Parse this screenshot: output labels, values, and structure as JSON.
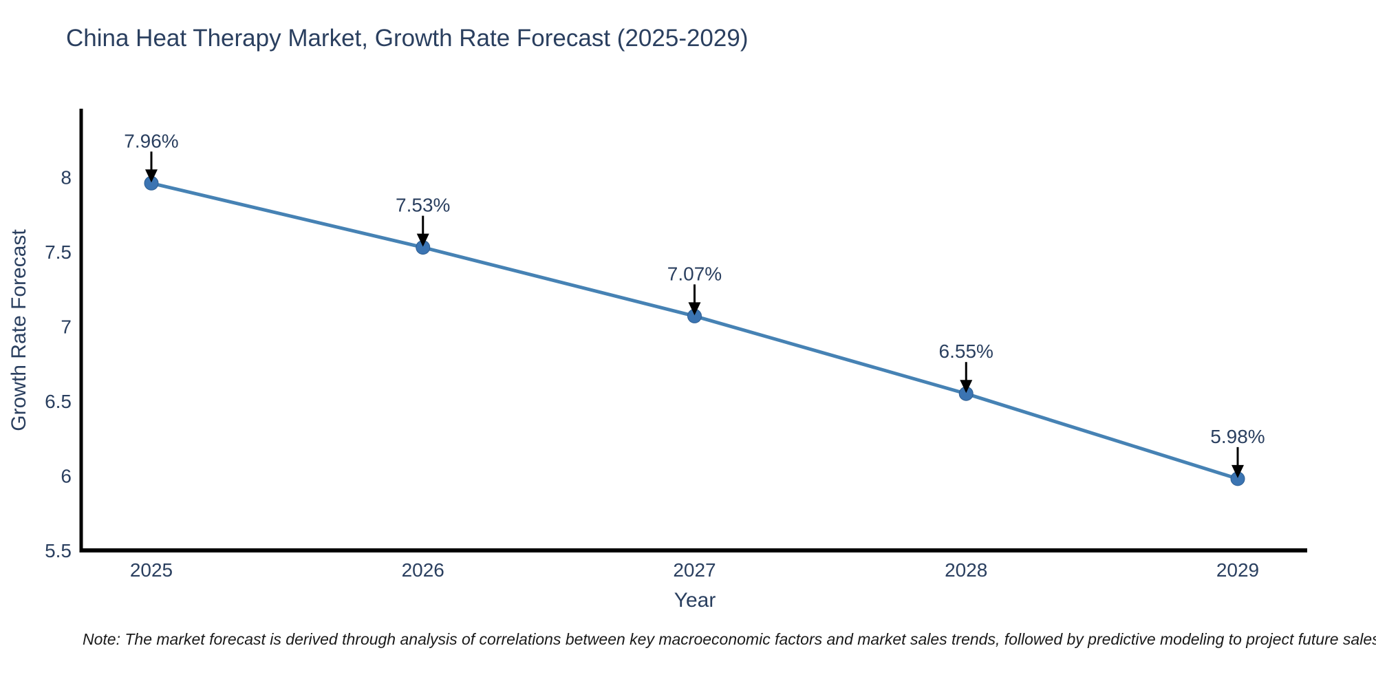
{
  "chart_data": {
    "type": "line",
    "title": "China Heat Therapy Market, Growth Rate Forecast (2025-2029)",
    "xlabel": "Year",
    "ylabel": "Growth Rate Forecast",
    "categories": [
      "2025",
      "2026",
      "2027",
      "2028",
      "2029"
    ],
    "values": [
      7.96,
      7.53,
      7.07,
      6.55,
      5.98
    ],
    "point_labels": [
      "7.96%",
      "7.53%",
      "7.07%",
      "6.55%",
      "5.98%"
    ],
    "ylim": [
      5.5,
      8.45
    ],
    "yticks": [
      5.5,
      6,
      6.5,
      7,
      7.5,
      8
    ],
    "ytick_labels": [
      "5.5",
      "6",
      "6.5",
      "7",
      "7.5",
      "8"
    ],
    "grid": false,
    "legend": "none",
    "colors": {
      "line": "#4682b4",
      "marker": "#3b74b2",
      "marker_edge": "#2e5e91",
      "arrow": "#000000",
      "axis": "#000000",
      "text": "#2a3f5f"
    }
  },
  "note": "Note: The market forecast is derived through analysis of correlations between key macroeconomic factors and market sales trends, followed by predictive modeling to project future sales"
}
